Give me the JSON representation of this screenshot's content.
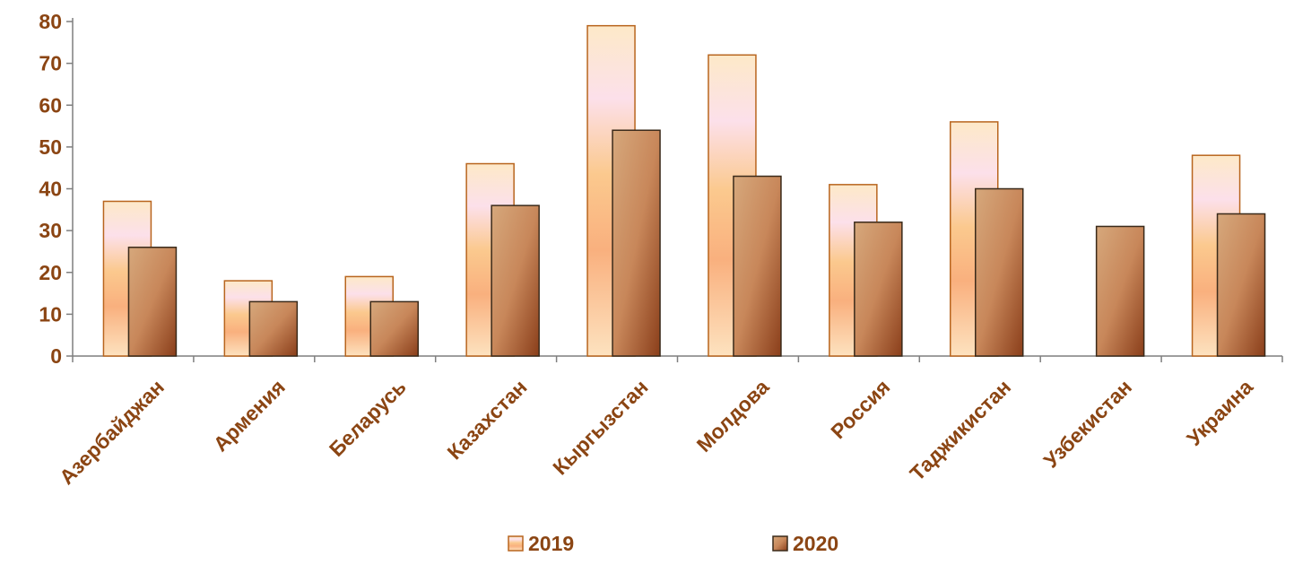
{
  "chart_data": {
    "type": "bar",
    "categories": [
      "Азербайджан",
      "Армения",
      "Беларусь",
      "Казахстан",
      "Кыргызстан",
      "Молдова",
      "Россия",
      "Таджикистан",
      "Узбекистан",
      "Украина"
    ],
    "series": [
      {
        "name": "2019",
        "values": [
          37,
          18,
          19,
          46,
          79,
          72,
          41,
          56,
          null,
          48
        ]
      },
      {
        "name": "2020",
        "values": [
          26,
          13,
          13,
          36,
          54,
          43,
          32,
          40,
          31,
          34
        ]
      }
    ],
    "ylim": [
      0,
      80
    ],
    "yticks": [
      0,
      10,
      20,
      30,
      40,
      50,
      60,
      70,
      80
    ],
    "grid": false,
    "legend_position": "bottom"
  }
}
